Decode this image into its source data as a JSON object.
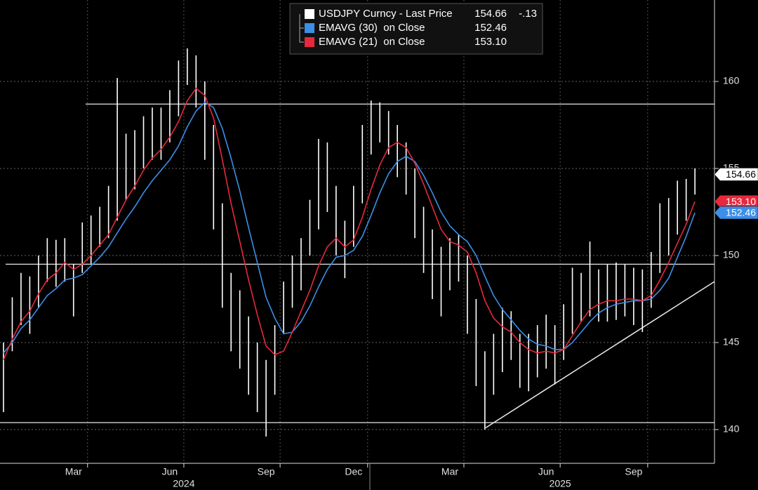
{
  "chart_data": {
    "type": "hilo",
    "categories": [
      null,
      null,
      null,
      null,
      null,
      null,
      null,
      null,
      "Mar",
      null,
      null,
      null,
      null,
      null,
      null,
      null,
      null,
      null,
      null,
      "Jun",
      null,
      null,
      null,
      null,
      null,
      null,
      null,
      null,
      null,
      null,
      "Sep",
      null,
      null,
      null,
      null,
      null,
      null,
      null,
      null,
      null,
      "Dec",
      null,
      null,
      null,
      null,
      null,
      null,
      null,
      null,
      null,
      null,
      "Mar",
      null,
      null,
      null,
      null,
      null,
      null,
      null,
      null,
      null,
      null,
      "Jun",
      null,
      null,
      null,
      null,
      null,
      null,
      null,
      null,
      null,
      "Sep",
      null,
      null,
      null,
      null,
      null,
      null,
      null
    ],
    "x_group_labels": [
      null,
      null,
      null,
      null,
      null,
      null,
      null,
      null,
      null,
      null,
      null,
      null,
      null,
      null,
      null,
      null,
      null,
      null,
      null,
      "2024",
      null,
      null,
      null,
      null,
      null,
      null,
      null,
      null,
      null,
      null,
      null,
      null,
      null,
      null,
      null,
      null,
      null,
      null,
      null,
      null,
      null,
      null,
      null,
      null,
      null,
      null,
      null,
      null,
      null,
      null,
      null,
      null,
      null,
      null,
      null,
      null,
      null,
      null,
      null,
      null,
      null,
      null,
      "2025",
      null,
      null,
      null,
      null,
      null,
      null,
      null,
      null,
      null,
      null,
      null,
      null,
      null,
      null,
      null,
      null,
      null
    ],
    "series": [
      {
        "name": "USDJPY Curncy - Last Price",
        "color": "#ffffff",
        "high": [
          145,
          147.6,
          149,
          148.8,
          150,
          151,
          150.9,
          151,
          149.5,
          151.9,
          152.3,
          152.8,
          154,
          160.2,
          157,
          157.2,
          158,
          158.5,
          158.5,
          159.5,
          161.2,
          161.9,
          161.5,
          160,
          157.5,
          153,
          149,
          148,
          146.5,
          145,
          144,
          146,
          148.5,
          150,
          151,
          153.2,
          156.7,
          156.5,
          154,
          152,
          154,
          157.5,
          158.9,
          158.8,
          158.3,
          157.5,
          156.5,
          155,
          152.8,
          151.5,
          150.5,
          151,
          151.2,
          150,
          147.5,
          144.5,
          145.5,
          147,
          146.8,
          145.5,
          145.5,
          146,
          146.6,
          146,
          147.2,
          149.3,
          149,
          150.8,
          149.2,
          149.5,
          149.6,
          149.5,
          149.3,
          149.2,
          150.2,
          153,
          153.3,
          154.3,
          154.4,
          155
        ],
        "low": [
          141,
          144.5,
          146,
          145.5,
          147,
          148.5,
          148.2,
          148.5,
          146.5,
          149,
          149.5,
          150.5,
          151,
          152,
          153.2,
          153.8,
          155,
          155.5,
          155.5,
          156.5,
          158,
          159.8,
          158.5,
          155.5,
          151.5,
          147,
          144.5,
          143.5,
          142,
          141,
          139.6,
          142,
          145.5,
          147,
          148,
          150,
          151.5,
          152.5,
          150,
          148.7,
          150.5,
          153,
          155.8,
          156.5,
          155.8,
          154.5,
          153.5,
          151,
          149,
          147.5,
          146.5,
          148,
          148.5,
          145.5,
          142.5,
          140,
          142,
          143.3,
          144,
          142.4,
          142.2,
          143,
          143.5,
          142.6,
          144,
          145.5,
          146.2,
          146.5,
          146.2,
          146.2,
          146.3,
          146.5,
          146,
          145.6,
          147,
          149,
          150,
          151.2,
          152,
          153.5
        ],
        "last": {
          "value": 154.66,
          "label": "154.66"
        },
        "change": {
          "value": -0.13,
          "label": "-.13"
        }
      },
      {
        "name": "EMAVG (30)  on Close",
        "color": "#3b8fe8",
        "values": [
          144.4,
          145,
          145.8,
          146.3,
          147,
          147.7,
          148.1,
          148.6,
          148.7,
          148.9,
          149.4,
          149.9,
          150.5,
          151.3,
          152.1,
          152.8,
          153.6,
          154.3,
          154.9,
          155.5,
          156.3,
          157.4,
          158.3,
          158.8,
          158.5,
          157.3,
          155.6,
          153.7,
          151.6,
          149.6,
          147.6,
          146.4,
          145.5,
          145.6,
          146.2,
          147.1,
          148.2,
          149.2,
          149.9,
          150,
          150.3,
          151.1,
          152.3,
          153.6,
          154.7,
          155.4,
          155.7,
          155.4,
          154.6,
          153.6,
          152.5,
          151.7,
          151.2,
          150.8,
          150,
          148.8,
          147.7,
          146.9,
          146.3,
          145.7,
          145.2,
          144.9,
          144.8,
          144.6,
          144.6,
          145,
          145.6,
          146.2,
          146.7,
          147,
          147.2,
          147.3,
          147.4,
          147.4,
          147.5,
          148,
          148.7,
          149.9,
          151.1,
          152.46
        ],
        "last": {
          "value": 152.46,
          "label": "152.46"
        }
      },
      {
        "name": "EMAVG (21)  on Close",
        "color": "#e8283c",
        "values": [
          144,
          145.2,
          146.2,
          146.8,
          147.8,
          148.6,
          149,
          149.6,
          149.2,
          149.5,
          150,
          150.6,
          151.2,
          152.2,
          153.2,
          154,
          154.9,
          155.6,
          156.1,
          156.8,
          157.7,
          158.9,
          159.6,
          159.2,
          157.9,
          155.5,
          153,
          150.8,
          148.6,
          146.6,
          144.8,
          144.3,
          144.5,
          145.6,
          146.8,
          148,
          149.4,
          150.5,
          151,
          150.5,
          150.9,
          152.2,
          153.8,
          155.2,
          156.2,
          156.5,
          156.2,
          155.3,
          154.1,
          152.8,
          151.5,
          150.8,
          150.6,
          150.2,
          149,
          147.4,
          146.4,
          145.9,
          145.6,
          145,
          144.6,
          144.4,
          144.5,
          144.4,
          144.6,
          145.4,
          146.2,
          146.9,
          147.2,
          147.4,
          147.4,
          147.5,
          147.5,
          147.4,
          147.7,
          148.6,
          149.6,
          150.7,
          151.8,
          153.1
        ],
        "last": {
          "value": 153.1,
          "label": "153.10"
        }
      }
    ],
    "ylim": [
      138.06,
      164.68
    ],
    "yticks": [
      140,
      145,
      150,
      155,
      160
    ],
    "grid": true,
    "hlines": [
      158.7,
      149.5,
      140.4
    ],
    "trendline": [
      140.1,
      148.5
    ]
  }
}
